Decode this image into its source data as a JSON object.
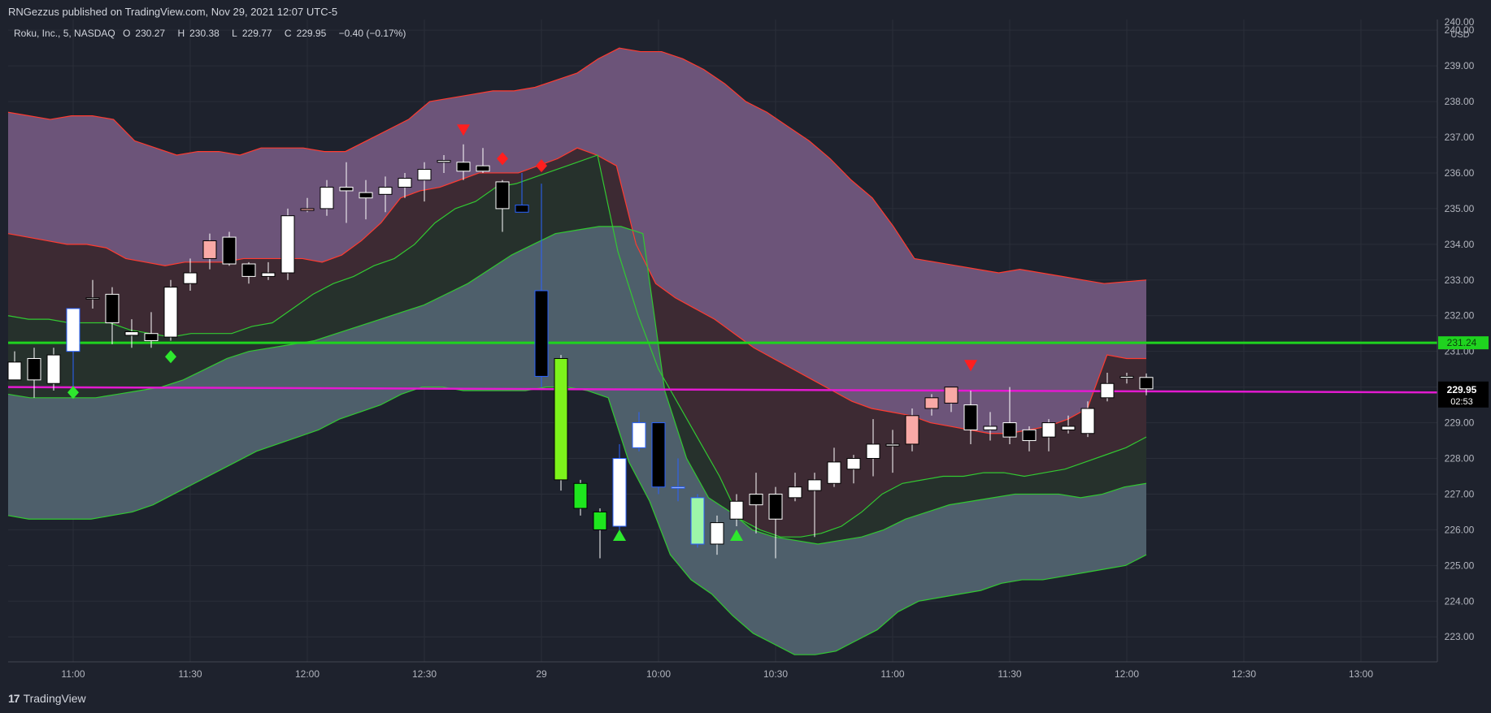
{
  "header": {
    "published": "RNGezzus published on TradingView.com, Nov 29, 2021 12:07 UTC-5"
  },
  "symbol": {
    "name": "Roku, Inc., 5, NASDAQ",
    "open_label": "O",
    "open": "230.27",
    "high_label": "H",
    "high": "230.38",
    "low_label": "L",
    "low": "229.77",
    "close_label": "C",
    "close": "229.95",
    "change": "−0.40 (−0.17%)"
  },
  "footer": {
    "brand": "TradingView",
    "logo_text": "17"
  },
  "colors": {
    "background": "#1e222d",
    "grid": "#2a2e39",
    "upper_band_fill": "#6c5479",
    "mid_upper_fill": "#3d2a33",
    "mid_lower_fill": "#26312c",
    "lower_band_fill": "#4e5f6b",
    "red_line": "#ff3b30",
    "green_line": "#32c832",
    "support_line": "#1fd31f",
    "magenta_line": "#e31ad0"
  },
  "chart_data": {
    "type": "candlestick",
    "ylim": [
      222.3,
      240.3
    ],
    "currency": "USD",
    "y_ticks": [
      "223.00",
      "224.00",
      "225.00",
      "226.00",
      "227.00",
      "228.00",
      "229.00",
      "230.00",
      "231.00",
      "232.00",
      "233.00",
      "234.00",
      "235.00",
      "236.00",
      "237.00",
      "238.00",
      "239.00",
      "240.00"
    ],
    "x_ticks": [
      {
        "i": 3,
        "label": "11:00"
      },
      {
        "i": 9,
        "label": "11:30"
      },
      {
        "i": 15,
        "label": "12:00"
      },
      {
        "i": 21,
        "label": "12:30"
      },
      {
        "i": 27,
        "label": "29"
      },
      {
        "i": 33,
        "label": "10:00"
      },
      {
        "i": 39,
        "label": "10:30"
      },
      {
        "i": 45,
        "label": "11:00"
      },
      {
        "i": 51,
        "label": "11:30"
      },
      {
        "i": 57,
        "label": "12:00"
      },
      {
        "i": 63,
        "label": "12:30"
      },
      {
        "i": 69,
        "label": "13:00"
      }
    ],
    "total_slots": 73,
    "candles": [
      {
        "o": 230.7,
        "h": 231.0,
        "l": 230.2,
        "c": 230.2,
        "col": "white"
      },
      {
        "o": 230.2,
        "h": 231.1,
        "l": 229.7,
        "c": 230.8,
        "col": "black"
      },
      {
        "o": 230.1,
        "h": 231.1,
        "l": 229.9,
        "c": 230.9,
        "col": "white"
      },
      {
        "o": 231.0,
        "h": 232.2,
        "l": 230.0,
        "c": 232.2,
        "col": "white",
        "border": "#2962ff"
      },
      {
        "o": 232.5,
        "h": 233.0,
        "l": 232.2,
        "c": 232.5,
        "col": "white"
      },
      {
        "o": 232.6,
        "h": 232.8,
        "l": 231.2,
        "c": 231.8,
        "col": "black"
      },
      {
        "o": 231.45,
        "h": 231.9,
        "l": 231.1,
        "c": 231.55,
        "col": "white"
      },
      {
        "o": 231.3,
        "h": 232.1,
        "l": 231.1,
        "c": 231.5,
        "col": "black"
      },
      {
        "o": 231.4,
        "h": 233.0,
        "l": 231.3,
        "c": 232.8,
        "col": "white"
      },
      {
        "o": 232.9,
        "h": 233.6,
        "l": 232.7,
        "c": 233.2,
        "col": "white"
      },
      {
        "o": 233.6,
        "h": 234.3,
        "l": 233.3,
        "c": 234.1,
        "col": "pink"
      },
      {
        "o": 234.2,
        "h": 234.35,
        "l": 233.4,
        "c": 233.45,
        "col": "black"
      },
      {
        "o": 233.45,
        "h": 233.5,
        "l": 232.9,
        "c": 233.1,
        "col": "black"
      },
      {
        "o": 233.1,
        "h": 233.5,
        "l": 233.0,
        "c": 233.2,
        "col": "white"
      },
      {
        "o": 233.2,
        "h": 235.0,
        "l": 233.0,
        "c": 234.8,
        "col": "white"
      },
      {
        "o": 234.95,
        "h": 235.3,
        "l": 234.9,
        "c": 235.0,
        "col": "pink"
      },
      {
        "o": 235.0,
        "h": 235.8,
        "l": 234.8,
        "c": 235.6,
        "col": "white"
      },
      {
        "o": 235.6,
        "h": 236.3,
        "l": 234.6,
        "c": 235.5,
        "col": "black"
      },
      {
        "o": 235.45,
        "h": 235.8,
        "l": 234.7,
        "c": 235.3,
        "col": "black"
      },
      {
        "o": 235.4,
        "h": 235.9,
        "l": 234.9,
        "c": 235.6,
        "col": "white"
      },
      {
        "o": 235.6,
        "h": 236.0,
        "l": 235.3,
        "c": 235.85,
        "col": "white"
      },
      {
        "o": 235.8,
        "h": 236.3,
        "l": 235.2,
        "c": 236.1,
        "col": "white"
      },
      {
        "o": 236.3,
        "h": 236.5,
        "l": 236.0,
        "c": 236.35,
        "col": "white"
      },
      {
        "o": 236.3,
        "h": 236.8,
        "l": 235.8,
        "c": 236.05,
        "col": "black"
      },
      {
        "o": 236.2,
        "h": 236.7,
        "l": 236.0,
        "c": 236.05,
        "col": "black"
      },
      {
        "o": 235.75,
        "h": 235.8,
        "l": 234.35,
        "c": 235.0,
        "col": "black"
      },
      {
        "o": 235.1,
        "h": 236.0,
        "l": 234.9,
        "c": 234.9,
        "col": "black",
        "border": "#2962ff"
      },
      {
        "o": 232.7,
        "h": 235.7,
        "l": 230.0,
        "c": 230.3,
        "col": "black",
        "border": "#2962ff"
      },
      {
        "o": 230.8,
        "h": 230.9,
        "l": 227.1,
        "c": 227.4,
        "col": "lime"
      },
      {
        "o": 227.3,
        "h": 227.4,
        "l": 226.4,
        "c": 226.6,
        "col": "green"
      },
      {
        "o": 226.5,
        "h": 226.6,
        "l": 225.2,
        "c": 226.0,
        "col": "green"
      },
      {
        "o": 228.0,
        "h": 228.4,
        "l": 226.0,
        "c": 226.1,
        "col": "white",
        "border": "#2962ff"
      },
      {
        "o": 229.0,
        "h": 229.3,
        "l": 228.2,
        "c": 228.3,
        "col": "white",
        "border": "#2962ff"
      },
      {
        "o": 229.0,
        "h": 229.0,
        "l": 227.0,
        "c": 227.2,
        "col": "black",
        "border": "#2962ff"
      },
      {
        "o": 227.2,
        "h": 228.0,
        "l": 226.8,
        "c": 227.2,
        "col": "white",
        "border": "#2962ff"
      },
      {
        "o": 226.9,
        "h": 227.0,
        "l": 225.5,
        "c": 225.6,
        "col": "lightgreen",
        "border": "#2962ff"
      },
      {
        "o": 225.6,
        "h": 226.4,
        "l": 225.3,
        "c": 226.2,
        "col": "white"
      },
      {
        "o": 226.3,
        "h": 227.0,
        "l": 226.1,
        "c": 226.8,
        "col": "white"
      },
      {
        "o": 226.7,
        "h": 227.6,
        "l": 225.9,
        "c": 227.0,
        "col": "black"
      },
      {
        "o": 226.3,
        "h": 227.2,
        "l": 225.2,
        "c": 227.0,
        "col": "black"
      },
      {
        "o": 226.9,
        "h": 227.6,
        "l": 226.8,
        "c": 227.2,
        "col": "white"
      },
      {
        "o": 227.1,
        "h": 227.6,
        "l": 225.8,
        "c": 227.4,
        "col": "white"
      },
      {
        "o": 227.3,
        "h": 228.3,
        "l": 227.2,
        "c": 227.9,
        "col": "white"
      },
      {
        "o": 227.7,
        "h": 228.1,
        "l": 227.3,
        "c": 228.0,
        "col": "white"
      },
      {
        "o": 228.0,
        "h": 229.1,
        "l": 227.5,
        "c": 228.4,
        "col": "white"
      },
      {
        "o": 228.4,
        "h": 228.8,
        "l": 227.6,
        "c": 228.35,
        "col": "white"
      },
      {
        "o": 228.4,
        "h": 229.4,
        "l": 228.2,
        "c": 229.2,
        "col": "pink"
      },
      {
        "o": 229.4,
        "h": 229.8,
        "l": 229.2,
        "c": 229.7,
        "col": "pink"
      },
      {
        "o": 229.55,
        "h": 230.0,
        "l": 229.3,
        "c": 230.0,
        "col": "pink"
      },
      {
        "o": 229.5,
        "h": 229.9,
        "l": 228.4,
        "c": 228.8,
        "col": "black"
      },
      {
        "o": 228.9,
        "h": 229.3,
        "l": 228.5,
        "c": 228.8,
        "col": "white"
      },
      {
        "o": 229.0,
        "h": 230.0,
        "l": 228.4,
        "c": 228.6,
        "col": "black"
      },
      {
        "o": 228.8,
        "h": 228.9,
        "l": 228.2,
        "c": 228.5,
        "col": "black"
      },
      {
        "o": 228.6,
        "h": 229.1,
        "l": 228.2,
        "c": 229.0,
        "col": "white"
      },
      {
        "o": 228.8,
        "h": 229.2,
        "l": 228.7,
        "c": 228.9,
        "col": "white"
      },
      {
        "o": 228.7,
        "h": 229.6,
        "l": 228.6,
        "c": 229.4,
        "col": "white"
      },
      {
        "o": 229.7,
        "h": 230.4,
        "l": 229.6,
        "c": 230.1,
        "col": "white"
      },
      {
        "o": 230.3,
        "h": 230.4,
        "l": 230.1,
        "c": 230.25,
        "col": "white"
      },
      {
        "o": 230.27,
        "h": 230.38,
        "l": 229.77,
        "c": 229.95,
        "col": "black"
      }
    ],
    "bands": {
      "upper_outer": [
        237.7,
        237.6,
        237.5,
        237.6,
        237.6,
        237.5,
        236.9,
        236.7,
        236.5,
        236.6,
        236.6,
        236.5,
        236.7,
        236.7,
        236.7,
        236.6,
        236.6,
        236.9,
        237.2,
        237.5,
        238.0,
        238.1,
        238.2,
        238.3,
        238.3,
        238.4,
        238.6,
        238.8,
        239.2,
        239.5,
        239.4,
        239.4,
        239.2,
        238.9,
        238.5,
        238.0,
        237.7,
        237.3,
        236.9,
        236.4,
        235.8,
        235.3,
        234.5,
        233.6,
        233.5,
        233.4,
        233.3,
        233.2,
        233.3,
        233.2,
        233.1,
        233.0,
        232.9,
        232.95,
        233.0
      ],
      "upper_inner": [
        234.3,
        234.2,
        234.1,
        234.0,
        234.0,
        233.9,
        233.6,
        233.5,
        233.4,
        233.5,
        233.5,
        233.5,
        233.6,
        233.6,
        233.6,
        233.6,
        233.5,
        233.7,
        234.1,
        234.6,
        235.3,
        235.5,
        235.6,
        235.8,
        236.0,
        236.0,
        236.0,
        236.2,
        236.4,
        236.7,
        236.5,
        236.2,
        234.0,
        232.9,
        232.5,
        232.2,
        231.9,
        231.5,
        231.1,
        230.8,
        230.5,
        230.2,
        229.9,
        229.6,
        229.4,
        229.3,
        229.2,
        229.0,
        228.9,
        228.8,
        228.7,
        228.7,
        228.8,
        228.9,
        229.1,
        229.4,
        230.9,
        230.8,
        230.8
      ],
      "mid_green": [
        232.0,
        231.9,
        231.9,
        231.8,
        231.8,
        231.8,
        231.6,
        231.5,
        231.4,
        231.5,
        231.5,
        231.5,
        231.7,
        231.8,
        232.2,
        232.6,
        232.9,
        233.1,
        233.4,
        233.6,
        234.0,
        234.6,
        235.0,
        235.2,
        235.6,
        235.7,
        235.9,
        236.1,
        236.3,
        236.5,
        233.8,
        232.0,
        230.5,
        229.5,
        228.5,
        227.5,
        226.3,
        226.0,
        225.8,
        225.8,
        225.9,
        226.1,
        226.5,
        227.0,
        227.3,
        227.4,
        227.5,
        227.5,
        227.6,
        227.6,
        227.5,
        227.6,
        227.7,
        227.9,
        228.1,
        228.3,
        228.6
      ],
      "lower_inner": [
        229.8,
        229.7,
        229.7,
        229.7,
        229.7,
        229.8,
        229.9,
        230.0,
        230.2,
        230.5,
        230.8,
        231.0,
        231.1,
        231.2,
        231.3,
        231.5,
        231.7,
        231.9,
        232.1,
        232.3,
        232.6,
        232.9,
        233.3,
        233.7,
        234.0,
        234.3,
        234.4,
        234.5,
        234.5,
        234.3,
        229.9,
        228.0,
        226.9,
        226.5,
        226.0,
        225.8,
        225.7,
        225.6,
        225.7,
        225.8,
        226.0,
        226.3,
        226.5,
        226.7,
        226.8,
        226.9,
        227.0,
        227.0,
        227.0,
        226.9,
        227.0,
        227.2,
        227.3
      ],
      "lower_outer": [
        226.4,
        226.3,
        226.3,
        226.3,
        226.3,
        226.4,
        226.5,
        226.7,
        227.0,
        227.3,
        227.6,
        227.9,
        228.2,
        228.4,
        228.6,
        228.8,
        229.1,
        229.3,
        229.5,
        229.8,
        230.0,
        230.0,
        229.9,
        229.9,
        229.9,
        229.9,
        230.0,
        230.0,
        229.9,
        229.7,
        227.9,
        226.8,
        225.3,
        224.6,
        224.2,
        223.6,
        223.1,
        222.8,
        222.5,
        222.5,
        222.6,
        222.9,
        223.2,
        223.7,
        224.0,
        224.1,
        224.2,
        224.3,
        224.5,
        224.6,
        224.6,
        224.7,
        224.8,
        224.9,
        225.0,
        225.3
      ]
    },
    "horizontal_lines": [
      {
        "name": "support",
        "y_start": 231.24,
        "y_end": 231.24,
        "label": "231.24"
      },
      {
        "name": "trend",
        "y_start": 230.0,
        "y_end": 229.85
      }
    ],
    "markers": [
      {
        "i": 3,
        "price": 229.85,
        "shape": "diamond",
        "color": "#2ee82e"
      },
      {
        "i": 8,
        "price": 230.85,
        "shape": "diamond",
        "color": "#2ee82e"
      },
      {
        "i": 23,
        "price": 237.2,
        "shape": "tri-down",
        "color": "#ff1f1f"
      },
      {
        "i": 25,
        "price": 236.4,
        "shape": "diamond",
        "color": "#ff1f1f"
      },
      {
        "i": 27,
        "price": 236.2,
        "shape": "diamond",
        "color": "#ff1f1f"
      },
      {
        "i": 31,
        "price": 225.85,
        "shape": "tri-up",
        "color": "#2ee82e"
      },
      {
        "i": 37,
        "price": 225.85,
        "shape": "tri-up",
        "color": "#2ee82e"
      },
      {
        "i": 49,
        "price": 230.6,
        "shape": "tri-down",
        "color": "#ff1f1f"
      }
    ],
    "last_price": {
      "value": "229.95",
      "countdown": "02:53"
    }
  }
}
